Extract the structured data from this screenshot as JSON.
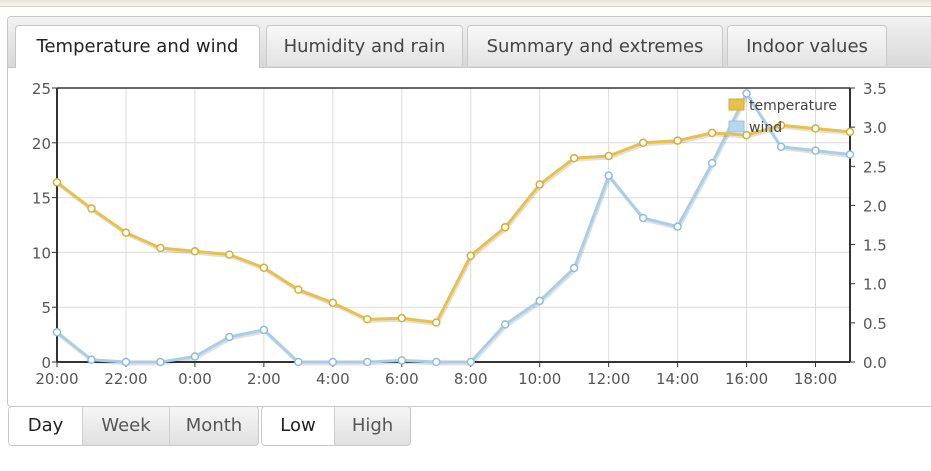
{
  "tabs": [
    {
      "label": "Temperature and wind",
      "active": true
    },
    {
      "label": "Humidity and rain",
      "active": false
    },
    {
      "label": "Summary and extremes",
      "active": false
    },
    {
      "label": "Indoor values",
      "active": false
    }
  ],
  "period_buttons": [
    {
      "label": "Day",
      "active": true
    },
    {
      "label": "Week",
      "active": false
    },
    {
      "label": "Month",
      "active": false
    }
  ],
  "range_buttons": [
    {
      "label": "Low",
      "active": true
    },
    {
      "label": "High",
      "active": false
    }
  ],
  "colors": {
    "temperature": "#e8c04b",
    "wind": "#a9cfe8",
    "temperature_legend": "#e8c04b",
    "wind_legend": "#b6d8ee"
  },
  "chart_data": {
    "type": "line",
    "x": [
      "20:00",
      "21:00",
      "22:00",
      "23:00",
      "0:00",
      "1:00",
      "2:00",
      "3:00",
      "4:00",
      "5:00",
      "6:00",
      "7:00",
      "8:00",
      "9:00",
      "10:00",
      "11:00",
      "12:00",
      "13:00",
      "14:00",
      "15:00",
      "16:00",
      "17:00",
      "18:00",
      "19:00"
    ],
    "x_tick_labels": [
      "20:00",
      "22:00",
      "0:00",
      "2:00",
      "4:00",
      "6:00",
      "8:00",
      "10:00",
      "12:00",
      "14:00",
      "16:00",
      "18:00"
    ],
    "series": [
      {
        "name": "temperature",
        "axis": "left",
        "values": [
          16.4,
          14.0,
          11.8,
          10.4,
          10.1,
          9.8,
          8.6,
          6.6,
          5.4,
          3.9,
          4.0,
          3.6,
          9.7,
          12.3,
          16.2,
          18.6,
          18.8,
          20.0,
          20.2,
          20.9,
          20.7,
          21.6,
          21.3,
          21.0
        ]
      },
      {
        "name": "wind",
        "axis": "right",
        "values": [
          0.38,
          0.03,
          0.0,
          0.0,
          0.07,
          0.32,
          0.41,
          0.0,
          0.0,
          0.0,
          0.02,
          0.0,
          0.0,
          0.48,
          0.78,
          1.2,
          2.38,
          1.84,
          1.73,
          2.54,
          3.43,
          2.75,
          2.7,
          2.65
        ]
      }
    ],
    "left_axis": {
      "min": 0,
      "max": 25,
      "ticks": [
        0,
        5,
        10,
        15,
        20,
        25
      ]
    },
    "right_axis": {
      "min": 0,
      "max": 3.5,
      "ticks": [
        "0.0",
        "0.5",
        "1.0",
        "1.5",
        "2.0",
        "2.5",
        "3.0",
        "3.5"
      ]
    },
    "grid": true,
    "legend_position": "top-right"
  }
}
